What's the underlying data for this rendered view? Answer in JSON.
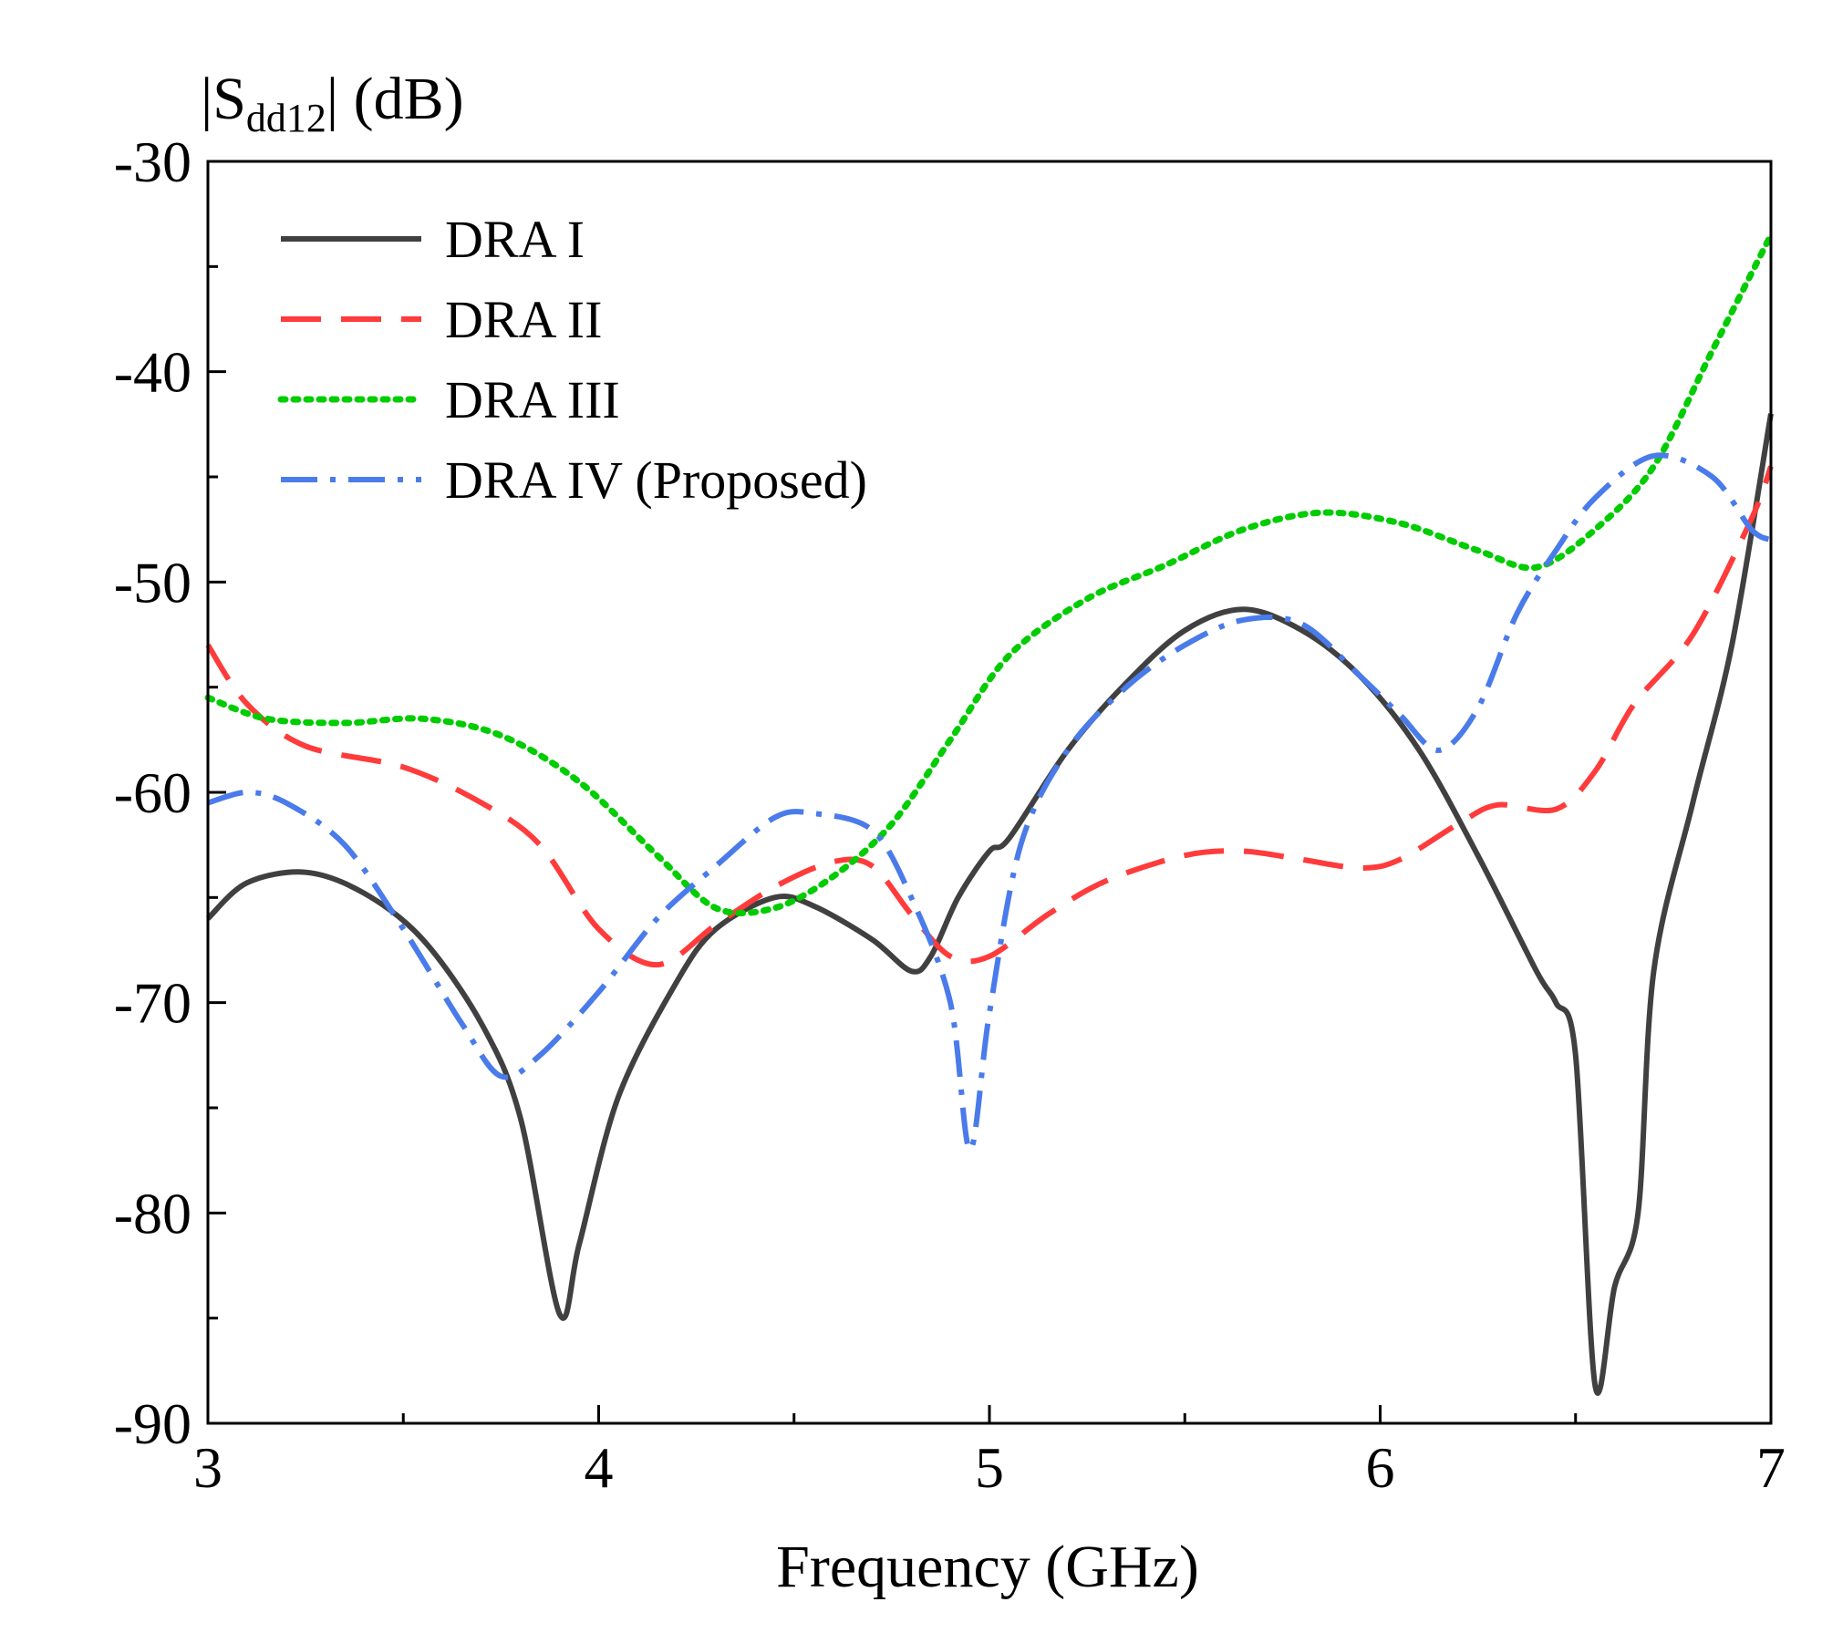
{
  "chart_data": {
    "type": "line",
    "title": "",
    "ylabel": {
      "prefix": "|S",
      "subscript": "dd12",
      "suffix": "| (dB)"
    },
    "xlabel": "Frequency (GHz)",
    "xlim": [
      3,
      7
    ],
    "ylim": [
      -90,
      -30
    ],
    "xticks": [
      3,
      4,
      5,
      6,
      7
    ],
    "yticks": [
      -90,
      -80,
      -70,
      -60,
      -50,
      -40,
      -30
    ],
    "xtick_labels": [
      "3",
      "4",
      "5",
      "6",
      "7"
    ],
    "ytick_labels": [
      "-90",
      "-80",
      "-70",
      "-60",
      "-50",
      "-40",
      "-30"
    ],
    "grid": false,
    "legend_position": "top-left",
    "series": [
      {
        "name": "DRA I",
        "color": "#404040",
        "style": "solid",
        "points": [
          [
            3.0,
            -66.0
          ],
          [
            3.1,
            -64.3
          ],
          [
            3.25,
            -63.8
          ],
          [
            3.4,
            -64.8
          ],
          [
            3.55,
            -67.0
          ],
          [
            3.7,
            -71.0
          ],
          [
            3.8,
            -75.5
          ],
          [
            3.9,
            -84.8
          ],
          [
            3.95,
            -81.5
          ],
          [
            4.05,
            -74.5
          ],
          [
            4.2,
            -69.0
          ],
          [
            4.3,
            -66.5
          ],
          [
            4.45,
            -65.0
          ],
          [
            4.55,
            -65.4
          ],
          [
            4.7,
            -67.0
          ],
          [
            4.8,
            -68.5
          ],
          [
            4.85,
            -67.8
          ],
          [
            4.92,
            -65.0
          ],
          [
            5.0,
            -62.8
          ],
          [
            5.05,
            -62.2
          ],
          [
            5.2,
            -58.0
          ],
          [
            5.35,
            -54.8
          ],
          [
            5.5,
            -52.3
          ],
          [
            5.65,
            -51.3
          ],
          [
            5.8,
            -52.3
          ],
          [
            5.95,
            -54.5
          ],
          [
            6.1,
            -58.0
          ],
          [
            6.25,
            -63.0
          ],
          [
            6.4,
            -68.5
          ],
          [
            6.45,
            -70.0
          ],
          [
            6.5,
            -72.5
          ],
          [
            6.55,
            -88.2
          ],
          [
            6.6,
            -83.5
          ],
          [
            6.66,
            -80.0
          ],
          [
            6.7,
            -68.5
          ],
          [
            6.8,
            -60.5
          ],
          [
            6.9,
            -53.0
          ],
          [
            7.0,
            -42.0
          ]
        ]
      },
      {
        "name": "DRA II",
        "color": "#ff3b3b",
        "style": "dashed",
        "points": [
          [
            3.0,
            -53.0
          ],
          [
            3.1,
            -55.8
          ],
          [
            3.25,
            -57.8
          ],
          [
            3.5,
            -58.8
          ],
          [
            3.7,
            -60.5
          ],
          [
            3.85,
            -62.5
          ],
          [
            4.0,
            -66.5
          ],
          [
            4.15,
            -68.2
          ],
          [
            4.3,
            -66.3
          ],
          [
            4.45,
            -64.5
          ],
          [
            4.6,
            -63.3
          ],
          [
            4.7,
            -63.5
          ],
          [
            4.8,
            -65.8
          ],
          [
            4.9,
            -67.8
          ],
          [
            5.0,
            -67.8
          ],
          [
            5.15,
            -65.8
          ],
          [
            5.3,
            -64.2
          ],
          [
            5.5,
            -63.0
          ],
          [
            5.65,
            -62.8
          ],
          [
            5.8,
            -63.2
          ],
          [
            5.95,
            -63.6
          ],
          [
            6.05,
            -63.2
          ],
          [
            6.2,
            -61.5
          ],
          [
            6.3,
            -60.6
          ],
          [
            6.45,
            -60.8
          ],
          [
            6.55,
            -59.0
          ],
          [
            6.65,
            -55.8
          ],
          [
            6.8,
            -52.5
          ],
          [
            6.95,
            -47.0
          ],
          [
            7.0,
            -44.5
          ]
        ]
      },
      {
        "name": "DRA III",
        "color": "#00cc00",
        "style": "dotted",
        "points": [
          [
            3.0,
            -55.5
          ],
          [
            3.15,
            -56.5
          ],
          [
            3.35,
            -56.7
          ],
          [
            3.55,
            -56.5
          ],
          [
            3.75,
            -57.3
          ],
          [
            3.95,
            -59.5
          ],
          [
            4.15,
            -63.0
          ],
          [
            4.3,
            -65.5
          ],
          [
            4.45,
            -65.5
          ],
          [
            4.6,
            -64.0
          ],
          [
            4.75,
            -61.5
          ],
          [
            4.9,
            -57.5
          ],
          [
            5.05,
            -53.5
          ],
          [
            5.25,
            -50.8
          ],
          [
            5.45,
            -49.2
          ],
          [
            5.65,
            -47.5
          ],
          [
            5.85,
            -46.7
          ],
          [
            6.05,
            -47.2
          ],
          [
            6.25,
            -48.5
          ],
          [
            6.4,
            -49.3
          ],
          [
            6.55,
            -47.5
          ],
          [
            6.7,
            -44.5
          ],
          [
            6.85,
            -39.0
          ],
          [
            7.0,
            -33.5
          ]
        ]
      },
      {
        "name": "DRA IV (Proposed)",
        "color": "#4a7bea",
        "style": "dash-dot",
        "points": [
          [
            3.0,
            -60.5
          ],
          [
            3.1,
            -60.0
          ],
          [
            3.2,
            -60.5
          ],
          [
            3.35,
            -62.5
          ],
          [
            3.5,
            -66.5
          ],
          [
            3.65,
            -71.0
          ],
          [
            3.75,
            -73.5
          ],
          [
            3.85,
            -72.5
          ],
          [
            4.0,
            -69.5
          ],
          [
            4.15,
            -66.0
          ],
          [
            4.3,
            -63.5
          ],
          [
            4.45,
            -61.2
          ],
          [
            4.55,
            -61.0
          ],
          [
            4.7,
            -61.8
          ],
          [
            4.8,
            -65.0
          ],
          [
            4.9,
            -70.0
          ],
          [
            4.95,
            -77.0
          ],
          [
            5.0,
            -70.5
          ],
          [
            5.08,
            -62.5
          ],
          [
            5.2,
            -58.0
          ],
          [
            5.35,
            -55.0
          ],
          [
            5.5,
            -53.0
          ],
          [
            5.65,
            -51.8
          ],
          [
            5.8,
            -52.0
          ],
          [
            5.95,
            -54.5
          ],
          [
            6.05,
            -56.3
          ],
          [
            6.15,
            -58.0
          ],
          [
            6.25,
            -56.0
          ],
          [
            6.35,
            -51.5
          ],
          [
            6.45,
            -48.5
          ],
          [
            6.55,
            -46.0
          ],
          [
            6.7,
            -44.0
          ],
          [
            6.85,
            -45.0
          ],
          [
            6.95,
            -47.5
          ],
          [
            7.0,
            -48.0
          ]
        ]
      }
    ]
  }
}
